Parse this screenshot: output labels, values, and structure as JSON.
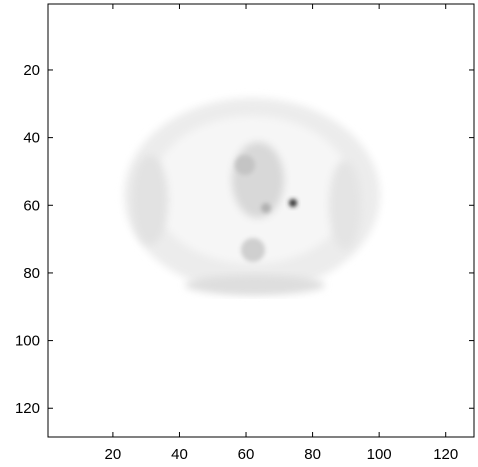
{
  "chart_data": {
    "type": "image",
    "xlim": [
      0.5,
      128.5
    ],
    "ylim": [
      0.5,
      128.5
    ],
    "y_reversed": true,
    "xticks": [
      20,
      40,
      60,
      80,
      100,
      120
    ],
    "yticks": [
      20,
      40,
      60,
      80,
      100,
      120
    ]
  }
}
